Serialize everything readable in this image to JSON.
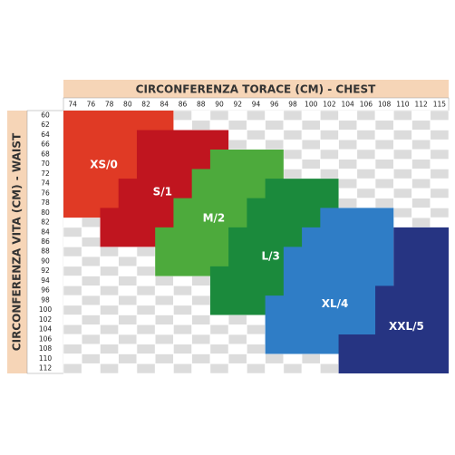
{
  "header": {
    "title": "CIRCONFERENZA TORACE (CM) - CHEST"
  },
  "side": {
    "title": "CIRCONFERENZA VITA (CM) - WAIST"
  },
  "columns": [
    74,
    76,
    78,
    80,
    82,
    84,
    86,
    88,
    90,
    92,
    94,
    96,
    98,
    100,
    102,
    104,
    106,
    108,
    110,
    112,
    115
  ],
  "rows": [
    60,
    62,
    64,
    66,
    68,
    70,
    72,
    74,
    76,
    78,
    80,
    82,
    84,
    86,
    88,
    90,
    92,
    94,
    96,
    98,
    100,
    102,
    104,
    106,
    108,
    110,
    112
  ],
  "sizes": [
    {
      "label": "XS/0",
      "color": "#e03a25"
    },
    {
      "label": "S/1",
      "color": "#c0151f"
    },
    {
      "label": "M/2",
      "color": "#4daa3c"
    },
    {
      "label": "L/3",
      "color": "#1b8a3c"
    },
    {
      "label": "XL/4",
      "color": "#2f7dc6"
    },
    {
      "label": "XXL/5",
      "color": "#263482"
    }
  ]
}
